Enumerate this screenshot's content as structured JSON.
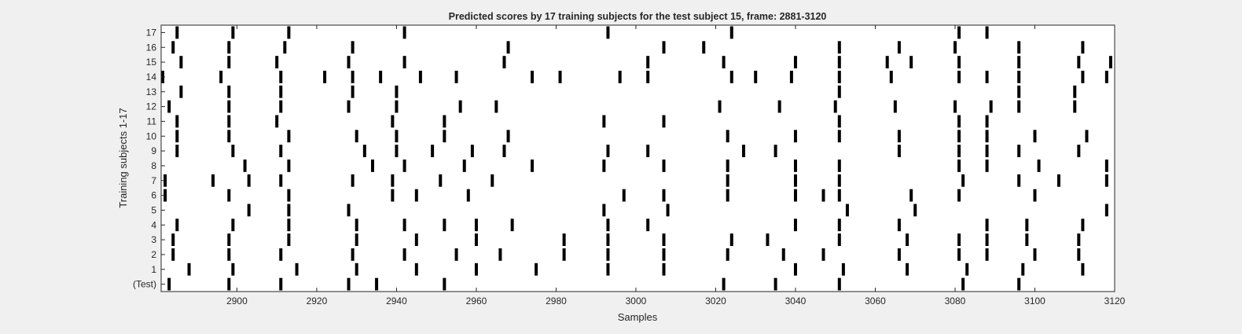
{
  "chart_data": {
    "type": "raster",
    "title": "Predicted scores by 17 training subjects for the test subject 15, frame: 2881-3120",
    "xlabel": "Samples",
    "ylabel": "Training subjects 1-17",
    "xlim": [
      2881,
      3120
    ],
    "xticks": [
      2900,
      2920,
      2940,
      2960,
      2980,
      3000,
      3020,
      3040,
      3060,
      3080,
      3100,
      3120
    ],
    "rows": [
      "(Test)",
      "1",
      "2",
      "3",
      "4",
      "5",
      "6",
      "7",
      "8",
      "9",
      "10",
      "11",
      "12",
      "13",
      "14",
      "15",
      "16",
      "17"
    ],
    "events": {
      "(Test)": [
        2883,
        2898,
        2911,
        2928,
        2935,
        2952,
        3022,
        3035,
        3051,
        3082,
        3096
      ],
      "1": [
        2888,
        2899,
        2915,
        2930,
        2945,
        2960,
        2975,
        2993,
        3007,
        3040,
        3052,
        3068,
        3083,
        3097,
        3112
      ],
      "2": [
        2884,
        2898,
        2911,
        2929,
        2942,
        2955,
        2966,
        2982,
        2993,
        3007,
        3023,
        3037,
        3047,
        3066,
        3081,
        3088,
        3100,
        3111
      ],
      "3": [
        2884,
        2898,
        2913,
        2930,
        2945,
        2960,
        2982,
        2993,
        3007,
        3024,
        3033,
        3051,
        3068,
        3081,
        3088,
        3098,
        3111
      ],
      "4": [
        2885,
        2899,
        2913,
        2930,
        2942,
        2952,
        2960,
        2969,
        2993,
        3003,
        3040,
        3051,
        3066,
        3088,
        3098,
        3112
      ],
      "5": [
        2903,
        2913,
        2928,
        2992,
        3008,
        3053,
        3070,
        3118
      ],
      "6": [
        2882,
        2898,
        2913,
        2939,
        2945,
        2958,
        2997,
        3007,
        3023,
        3040,
        3047,
        3051,
        3069,
        3081,
        3100
      ],
      "7": [
        2882,
        2894,
        2903,
        2911,
        2929,
        2939,
        2951,
        2964,
        3023,
        3040,
        3051,
        3082,
        3096,
        3106,
        3118
      ],
      "8": [
        2902,
        2913,
        2934,
        2942,
        2957,
        2974,
        2992,
        3007,
        3023,
        3040,
        3051,
        3081,
        3088,
        3101,
        3118
      ],
      "9": [
        2885,
        2899,
        2911,
        2932,
        2940,
        2949,
        2959,
        2967,
        2993,
        3003,
        3027,
        3035,
        3066,
        3081,
        3088,
        3096,
        3111
      ],
      "10": [
        2885,
        2898,
        2913,
        2930,
        2940,
        2952,
        2968,
        3023,
        3040,
        3051,
        3066,
        3081,
        3088,
        3100,
        3113
      ],
      "11": [
        2885,
        2898,
        2910,
        2939,
        2952,
        2992,
        3007,
        3051,
        3081,
        3088
      ],
      "12": [
        2883,
        2898,
        2911,
        2928,
        2940,
        2956,
        2965,
        3021,
        3036,
        3050,
        3065,
        3080,
        3089,
        3096,
        3110
      ],
      "13": [
        2886,
        2898,
        2911,
        2929,
        2940,
        3051,
        3096,
        3110
      ],
      "14": [
        2881,
        2896,
        2911,
        2922,
        2929,
        2936,
        2946,
        2955,
        2974,
        2981,
        2996,
        3003,
        3024,
        3030,
        3039,
        3051,
        3064,
        3081,
        3088,
        3096,
        3112,
        3118
      ],
      "15": [
        2886,
        2898,
        2910,
        2928,
        2942,
        2967,
        3003,
        3022,
        3040,
        3051,
        3063,
        3069,
        3081,
        3096,
        3111,
        3119
      ],
      "16": [
        2884,
        2898,
        2912,
        2929,
        2968,
        3007,
        3017,
        3051,
        3066,
        3080,
        3096,
        3112
      ],
      "17": [
        2885,
        2899,
        2913,
        2942,
        2993,
        3024,
        3081,
        3088
      ]
    }
  }
}
